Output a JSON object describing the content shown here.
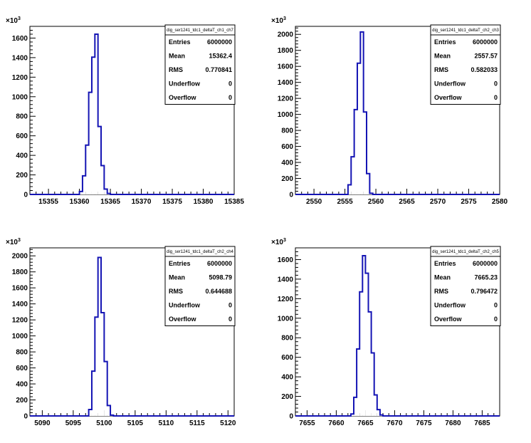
{
  "chart_data": [
    {
      "type": "bar",
      "histogram_name": "dig_ser1241_tdc1_deltaT_ch1_ch7",
      "y_exponent": "3",
      "xlim": [
        15352,
        15385
      ],
      "ylim": [
        0,
        1720
      ],
      "x_ticks": [
        15355,
        15360,
        15365,
        15370,
        15375,
        15380,
        15385
      ],
      "y_ticks": [
        0,
        200,
        400,
        600,
        800,
        1000,
        1200,
        1400,
        1600
      ],
      "bin_width": 0.5,
      "bins": [
        {
          "x0": 15359.5,
          "count": 0
        },
        {
          "x0": 15360.0,
          "count": 30
        },
        {
          "x0": 15360.5,
          "count": 190
        },
        {
          "x0": 15361.0,
          "count": 505
        },
        {
          "x0": 15361.5,
          "count": 1045
        },
        {
          "x0": 15362.0,
          "count": 1405
        },
        {
          "x0": 15362.5,
          "count": 1640
        },
        {
          "x0": 15363.0,
          "count": 695
        },
        {
          "x0": 15363.5,
          "count": 295
        },
        {
          "x0": 15364.0,
          "count": 55
        },
        {
          "x0": 15364.5,
          "count": 10
        },
        {
          "x0": 15365.0,
          "count": 0
        }
      ],
      "stats": [
        {
          "label": "Entries",
          "value": "6000000"
        },
        {
          "label": "Mean",
          "value": "15362.4"
        },
        {
          "label": "RMS",
          "value": "0.770841"
        },
        {
          "label": "Underflow",
          "value": "0"
        },
        {
          "label": "Overflow",
          "value": "0"
        }
      ],
      "line_color": "#1414b4"
    },
    {
      "type": "bar",
      "histogram_name": "dig_ser1241_tdc1_deltaT_ch2_ch3",
      "y_exponent": "3",
      "xlim": [
        2547,
        2580
      ],
      "ylim": [
        0,
        2100
      ],
      "x_ticks": [
        2550,
        2555,
        2560,
        2565,
        2570,
        2575,
        2580
      ],
      "y_ticks": [
        0,
        200,
        400,
        600,
        800,
        1000,
        1200,
        1400,
        1600,
        1800,
        2000
      ],
      "bin_width": 0.5,
      "bins": [
        {
          "x0": 2555.0,
          "count": 0
        },
        {
          "x0": 2555.5,
          "count": 120
        },
        {
          "x0": 2556.0,
          "count": 470
        },
        {
          "x0": 2556.5,
          "count": 1060
        },
        {
          "x0": 2557.0,
          "count": 1640
        },
        {
          "x0": 2557.5,
          "count": 2030
        },
        {
          "x0": 2558.0,
          "count": 1030
        },
        {
          "x0": 2558.5,
          "count": 260
        },
        {
          "x0": 2559.0,
          "count": 15
        },
        {
          "x0": 2559.5,
          "count": 0
        }
      ],
      "stats": [
        {
          "label": "Entries",
          "value": "6000000"
        },
        {
          "label": "Mean",
          "value": "2557.57"
        },
        {
          "label": "RMS",
          "value": "0.582033"
        },
        {
          "label": "Underflow",
          "value": "0"
        },
        {
          "label": "Overflow",
          "value": "0"
        }
      ],
      "line_color": "#1414b4"
    },
    {
      "type": "bar",
      "histogram_name": "dig_ser1241_tdc1_deltaT_ch2_ch4",
      "y_exponent": "3",
      "xlim": [
        5088,
        5121
      ],
      "ylim": [
        0,
        2100
      ],
      "x_ticks": [
        5090,
        5095,
        5100,
        5105,
        5110,
        5115,
        5120
      ],
      "y_ticks": [
        0,
        200,
        400,
        600,
        800,
        1000,
        1200,
        1400,
        1600,
        1800,
        2000
      ],
      "bin_width": 0.5,
      "bins": [
        {
          "x0": 5097.0,
          "count": 0
        },
        {
          "x0": 5097.5,
          "count": 80
        },
        {
          "x0": 5098.0,
          "count": 560
        },
        {
          "x0": 5098.5,
          "count": 1235
        },
        {
          "x0": 5099.0,
          "count": 1980
        },
        {
          "x0": 5099.5,
          "count": 1290
        },
        {
          "x0": 5100.0,
          "count": 680
        },
        {
          "x0": 5100.5,
          "count": 130
        },
        {
          "x0": 5101.0,
          "count": 10
        },
        {
          "x0": 5101.5,
          "count": 0
        }
      ],
      "stats": [
        {
          "label": "Entries",
          "value": "6000000"
        },
        {
          "label": "Mean",
          "value": "5098.79"
        },
        {
          "label": "RMS",
          "value": "0.644688"
        },
        {
          "label": "Underflow",
          "value": "0"
        },
        {
          "label": "Overflow",
          "value": "0"
        }
      ],
      "line_color": "#1414b4"
    },
    {
      "type": "bar",
      "histogram_name": "dig_ser1241_tdc1_deltaT_ch2_ch5",
      "y_exponent": "3",
      "xlim": [
        7653,
        7688
      ],
      "ylim": [
        0,
        1720
      ],
      "x_ticks": [
        7655,
        7660,
        7665,
        7670,
        7675,
        7680,
        7685
      ],
      "y_ticks": [
        0,
        200,
        400,
        600,
        800,
        1000,
        1200,
        1400,
        1600
      ],
      "bin_width": 0.5,
      "bins": [
        {
          "x0": 7662.0,
          "count": 0
        },
        {
          "x0": 7662.5,
          "count": 20
        },
        {
          "x0": 7663.0,
          "count": 190
        },
        {
          "x0": 7663.5,
          "count": 685
        },
        {
          "x0": 7664.0,
          "count": 1270
        },
        {
          "x0": 7664.5,
          "count": 1640
        },
        {
          "x0": 7665.0,
          "count": 1460
        },
        {
          "x0": 7665.5,
          "count": 1065
        },
        {
          "x0": 7666.0,
          "count": 645
        },
        {
          "x0": 7666.5,
          "count": 215
        },
        {
          "x0": 7667.0,
          "count": 65
        },
        {
          "x0": 7667.5,
          "count": 10
        },
        {
          "x0": 7668.0,
          "count": 0
        }
      ],
      "stats": [
        {
          "label": "Entries",
          "value": "6000000"
        },
        {
          "label": "Mean",
          "value": "7665.23"
        },
        {
          "label": "RMS",
          "value": "0.796472"
        },
        {
          "label": "Underflow",
          "value": "0"
        },
        {
          "label": "Overflow",
          "value": "0"
        }
      ],
      "line_color": "#1414b4"
    }
  ]
}
